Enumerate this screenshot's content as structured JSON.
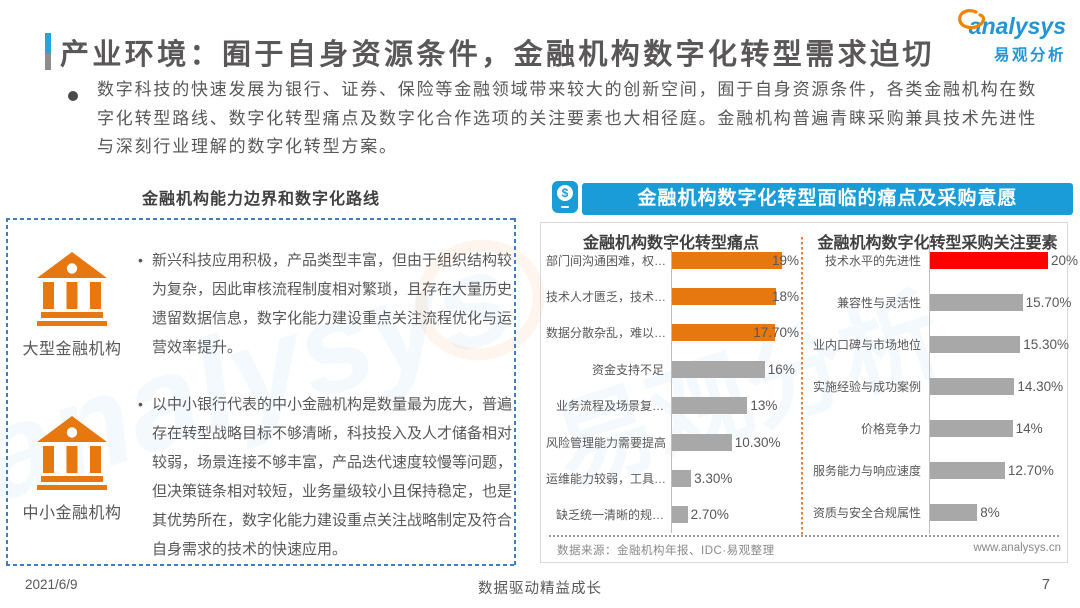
{
  "header": {
    "title": "产业环境：囿于自身资源条件，金融机构数字化转型需求迫切",
    "logo_en": "analysys",
    "logo_cn": "易观分析",
    "bullet": "数字科技的快速发展为银行、证券、保险等金融领域带来较大的创新空间，囿于自身资源条件，各类金融机构在数字化转型路线、数字化转型痛点及数字化合作选项的关注要素也大相径庭。金融机构普遍青睐采购兼具技术先进性与深刻行业理解的数字化转型方案。"
  },
  "left_section": {
    "title": "金融机构能力边界和数字化路线",
    "items": [
      {
        "label": "大型金融机构",
        "icon": "bank-icon",
        "text": "新兴科技应用积极，产品类型丰富，但由于组织结构较为复杂，因此审核流程制度相对繁琐，且存在大量历史遗留数据信息，数字化能力建设重点关注流程优化与运营效率提升。"
      },
      {
        "label": "中小金融机构",
        "icon": "bank-icon",
        "text": "以中小银行代表的中小金融机构是数量最为庞大，普遍存在转型战略目标不够清晰，科技投入及人才储备相对较弱，场景连接不够丰富，产品迭代速度较慢等问题，但决策链条相对较短，业务量级较小且保持稳定，也是其优势所在，数字化能力建设重点关注战略制定及符合自身需求的技术的快速应用。"
      }
    ]
  },
  "right_section": {
    "banner": "金融机构数字化转型面临的痛点及采购意愿",
    "banner_icon": "money-circle-icon",
    "source": "数据来源：金融机构年报、IDC·易观整理",
    "website": "www.analysys.cn"
  },
  "chart_data": [
    {
      "type": "bar",
      "orientation": "horizontal",
      "title": "金融机构数字化转型痛点",
      "categories": [
        "部门间沟通困难，权…",
        "技术人才匮乏，技术…",
        "数据分散杂乱，难以…",
        "资金支持不足",
        "业务流程及场景复…",
        "风险管理能力需要提高",
        "运维能力较弱，工具…",
        "缺乏统一清晰的规…"
      ],
      "values": [
        19,
        18,
        17.7,
        16,
        13,
        10.3,
        3.3,
        2.7
      ],
      "value_labels": [
        "19%",
        "18%",
        "17.70%",
        "16%",
        "13%",
        "10.30%",
        "3.30%",
        "2.70%"
      ],
      "bar_colors": [
        "#E6780F",
        "#E6780F",
        "#E6780F",
        "#A8A8A8",
        "#A8A8A8",
        "#A8A8A8",
        "#A8A8A8",
        "#A8A8A8"
      ],
      "xlim": [
        0,
        21
      ],
      "legend": "none",
      "grid": "off"
    },
    {
      "type": "bar",
      "orientation": "horizontal",
      "title": "金融机构数字化转型采购关注要素",
      "categories": [
        "技术水平的先进性",
        "兼容性与灵活性",
        "业内口碑与市场地位",
        "实施经验与成功案例",
        "价格竞争力",
        "服务能力与响应速度",
        "资质与安全合规属性"
      ],
      "values": [
        20,
        15.7,
        15.3,
        14.3,
        14,
        12.7,
        8
      ],
      "value_labels": [
        "20%",
        "15.70%",
        "15.30%",
        "14.30%",
        "14%",
        "12.70%",
        "8%"
      ],
      "bar_colors": [
        "#FF0000",
        "#A8A8A8",
        "#A8A8A8",
        "#A8A8A8",
        "#A8A8A8",
        "#A8A8A8",
        "#A8A8A8"
      ],
      "xlim": [
        0,
        21
      ],
      "legend": "none",
      "grid": "off"
    }
  ],
  "footer": {
    "date": "2021/6/9",
    "slogan": "数据驱动精益成长",
    "page": "7"
  }
}
